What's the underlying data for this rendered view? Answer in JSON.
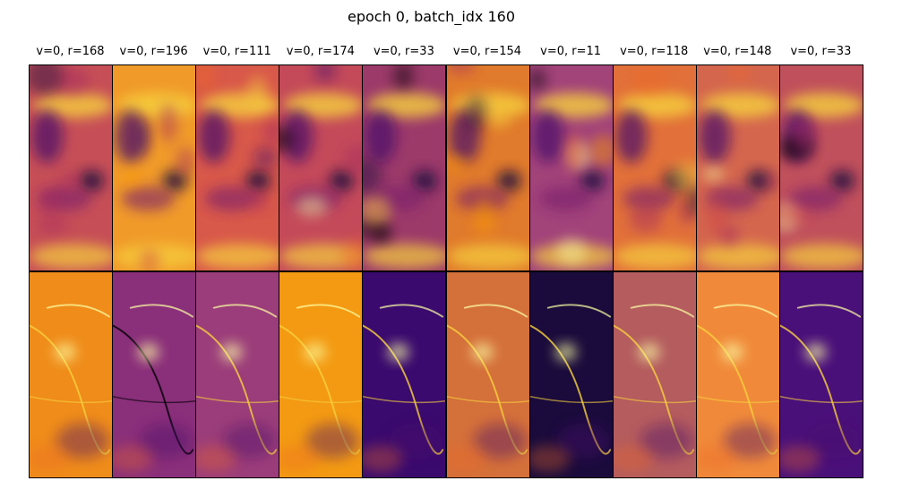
{
  "figure": {
    "title": "epoch 0, batch_idx 160",
    "columns": [
      {
        "label": "v=0, r=168"
      },
      {
        "label": "v=0, r=196"
      },
      {
        "label": "v=0, r=111"
      },
      {
        "label": "v=0, r=174"
      },
      {
        "label": "v=0, r=33"
      },
      {
        "label": "v=0, r=154"
      },
      {
        "label": "v=0, r=11"
      },
      {
        "label": "v=0, r=118"
      },
      {
        "label": "v=0, r=148"
      },
      {
        "label": "v=0, r=33"
      }
    ],
    "rows": 2,
    "colormap": "inferno"
  }
}
